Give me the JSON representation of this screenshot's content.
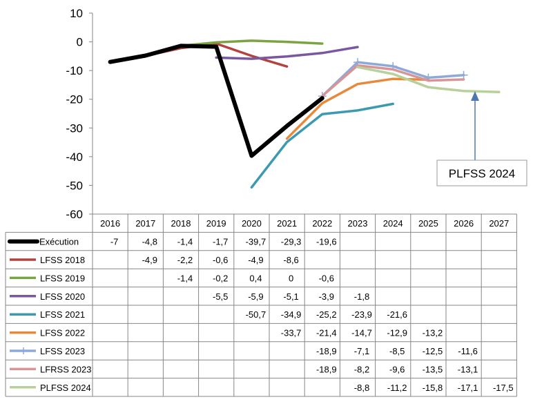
{
  "chart_data": {
    "type": "line",
    "title": "",
    "xlabel": "",
    "ylabel": "",
    "ylim": [
      -60,
      10
    ],
    "yticks": [
      10,
      0,
      -10,
      -20,
      -30,
      -40,
      -50,
      -60
    ],
    "grid": false,
    "legend": "data table below the plot",
    "categories": [
      "2016",
      "2017",
      "2018",
      "2019",
      "2020",
      "2021",
      "2022",
      "2023",
      "2024",
      "2025",
      "2026",
      "2027"
    ],
    "series": [
      {
        "name": "Exécution",
        "color": "#000000",
        "values": [
          -7,
          -4.8,
          -1.4,
          -1.7,
          -39.7,
          -29.3,
          -19.6,
          null,
          null,
          null,
          null,
          null
        ]
      },
      {
        "name": "LFSS 2018",
        "color": "#b3433f",
        "values": [
          null,
          -4.9,
          -2.2,
          -0.6,
          -4.9,
          -8.6,
          null,
          null,
          null,
          null,
          null,
          null
        ]
      },
      {
        "name": "LFSS 2019",
        "color": "#7aa441",
        "values": [
          null,
          null,
          -1.4,
          -0.2,
          0.4,
          0,
          -0.6,
          null,
          null,
          null,
          null,
          null
        ]
      },
      {
        "name": "LFSS 2020",
        "color": "#7b57a0",
        "values": [
          null,
          null,
          null,
          -5.5,
          -5.9,
          -5.1,
          -3.9,
          -1.8,
          null,
          null,
          null,
          null
        ]
      },
      {
        "name": "LFSS 2021",
        "color": "#3b9ab0",
        "values": [
          null,
          null,
          null,
          null,
          -50.7,
          -34.9,
          -25.2,
          -23.9,
          -21.6,
          null,
          null,
          null
        ]
      },
      {
        "name": "LFSS 2022",
        "color": "#e8893a",
        "values": [
          null,
          null,
          null,
          null,
          null,
          -33.7,
          -21.4,
          -14.7,
          -12.9,
          -13.2,
          null,
          null
        ]
      },
      {
        "name": "LFSS 2023",
        "color": "#8ea8d8",
        "values": [
          null,
          null,
          null,
          null,
          null,
          null,
          -18.9,
          -7.1,
          -8.5,
          -12.5,
          -11.6,
          null
        ]
      },
      {
        "name": "LFRSS 2023",
        "color": "#d89596",
        "values": [
          null,
          null,
          null,
          null,
          null,
          null,
          -18.9,
          -8.2,
          -9.6,
          -13.5,
          -13.1,
          null
        ]
      },
      {
        "name": "PLFSS 2024",
        "color": "#b8d09a",
        "values": [
          null,
          null,
          null,
          null,
          null,
          null,
          null,
          -8.8,
          -11.2,
          -15.8,
          -17.1,
          -17.5
        ]
      }
    ],
    "annotation": {
      "text": "PLFSS 2024"
    }
  }
}
